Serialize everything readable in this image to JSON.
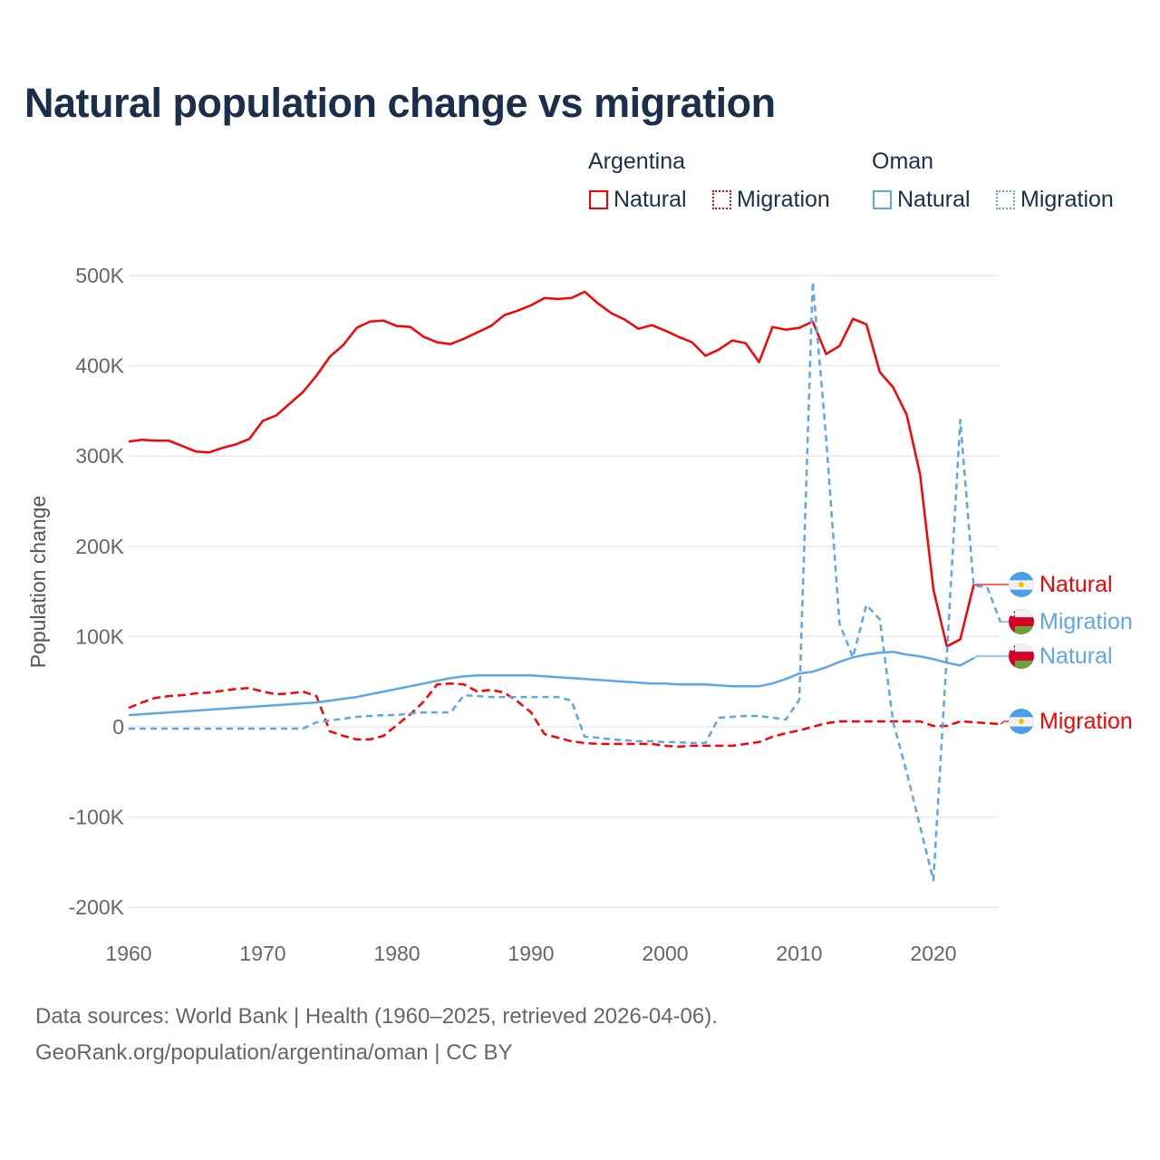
{
  "title": "Natural population change vs migration",
  "legend": {
    "groups": [
      {
        "name": "Argentina",
        "items": [
          "Natural",
          "Migration"
        ],
        "color": "#ff0000"
      },
      {
        "name": "Oman",
        "items": [
          "Natural",
          "Migration"
        ],
        "color": "#5ca6ea"
      }
    ]
  },
  "footer": {
    "line1": "Data sources: World Bank | Health (1960–2025, retrieved 2026-04-06).",
    "line2": "GeoRank.org/population/argentina/oman | CC BY"
  },
  "chart_data": {
    "type": "line",
    "title": "Natural population change vs migration",
    "xlabel": "",
    "ylabel": "Population change",
    "xlim": [
      1960,
      2025
    ],
    "ylim": [
      -200000,
      500000
    ],
    "x_ticks": [
      "1960",
      "1970",
      "1980",
      "1990",
      "2000",
      "2010",
      "2020"
    ],
    "y_ticks": [
      "500K",
      "400K",
      "300K",
      "200K",
      "100K",
      "0",
      "-100K",
      "-200K"
    ],
    "y_tick_values": [
      500,
      400,
      300,
      200,
      100,
      0,
      -100,
      -200
    ],
    "x_tick_values": [
      1960,
      1970,
      1980,
      1990,
      2000,
      2010,
      2020
    ],
    "grid": true,
    "units": "thousands",
    "series": [
      {
        "name": "Argentina Natural",
        "country": "Argentina",
        "kind": "Natural",
        "color": "#ff0000",
        "dash": "solid",
        "start": 1960,
        "values": [
          316,
          318,
          317,
          317,
          311,
          305,
          304,
          309,
          313,
          319,
          339,
          345,
          358,
          371,
          389,
          410,
          423,
          442,
          449,
          450,
          444,
          443,
          432,
          426,
          424,
          430,
          437,
          444,
          456,
          461,
          467,
          475,
          474,
          475,
          482,
          469,
          458,
          451,
          441,
          445,
          439,
          432,
          426,
          411,
          418,
          428,
          425,
          404,
          443,
          440,
          442,
          449,
          413,
          422,
          452,
          446,
          393,
          376,
          346,
          280,
          152,
          89,
          97,
          157
        ]
      },
      {
        "name": "Argentina Migration",
        "country": "Argentina",
        "kind": "Migration",
        "color": "#ff0000",
        "dash": "dashed",
        "start": 1960,
        "values": [
          21,
          27,
          32,
          34,
          35,
          37,
          38,
          40,
          42,
          43,
          39,
          36,
          37,
          39,
          34,
          -5,
          -10,
          -14,
          -14,
          -10,
          2,
          14,
          28,
          47,
          48,
          47,
          39,
          41,
          38,
          28,
          16,
          -8,
          -12,
          -16,
          -18,
          -19,
          -19,
          -19,
          -19,
          -19,
          -21,
          -22,
          -21,
          -21,
          -21,
          -21,
          -19,
          -17,
          -11,
          -7,
          -4,
          0,
          4,
          6,
          6,
          6,
          6,
          6,
          6,
          6,
          1,
          1,
          6,
          5,
          4,
          3
        ]
      },
      {
        "name": "Oman Natural",
        "country": "Oman",
        "kind": "Natural",
        "color": "#5ca6ea",
        "dash": "solid",
        "start": 1960,
        "values": [
          13,
          14,
          15,
          16,
          17,
          18,
          19,
          20,
          21,
          22,
          23,
          24,
          25,
          26,
          27,
          29,
          31,
          33,
          36,
          39,
          42,
          45,
          48,
          51,
          54,
          56,
          57,
          57,
          57,
          57,
          57,
          56,
          55,
          54,
          53,
          52,
          51,
          50,
          49,
          48,
          48,
          47,
          47,
          47,
          46,
          45,
          45,
          45,
          48,
          53,
          59,
          61,
          66,
          72,
          77,
          80,
          82,
          83,
          80,
          78,
          75,
          71,
          68,
          76
        ]
      },
      {
        "name": "Oman Migration",
        "country": "Oman",
        "kind": "Migration",
        "color": "#5ca6ea",
        "dash": "dashed",
        "start": 1960,
        "values": [
          -2,
          -2,
          -2,
          -2,
          -2,
          -2,
          -2,
          -2,
          -2,
          -2,
          -2,
          -2,
          -2,
          -2,
          5,
          7,
          9,
          11,
          12,
          13,
          13,
          15,
          16,
          16,
          16,
          35,
          34,
          33,
          33,
          33,
          33,
          33,
          33,
          29,
          -11,
          -12,
          -14,
          -15,
          -16,
          -16,
          -17,
          -17,
          -18,
          -18,
          10,
          11,
          12,
          12,
          10,
          8,
          30,
          493,
          320,
          114,
          77,
          135,
          119,
          5,
          -50,
          -110,
          -170,
          80,
          340,
          156,
          155,
          116
        ]
      }
    ],
    "end_labels": [
      {
        "text": "Natural",
        "series": 0,
        "flag": "argentina-flag"
      },
      {
        "text": "Migration",
        "series": 3,
        "flag": "oman-flag"
      },
      {
        "text": "Natural",
        "series": 2,
        "flag": "oman-flag"
      },
      {
        "text": "Migration",
        "series": 1,
        "flag": "argentina-flag"
      }
    ]
  }
}
